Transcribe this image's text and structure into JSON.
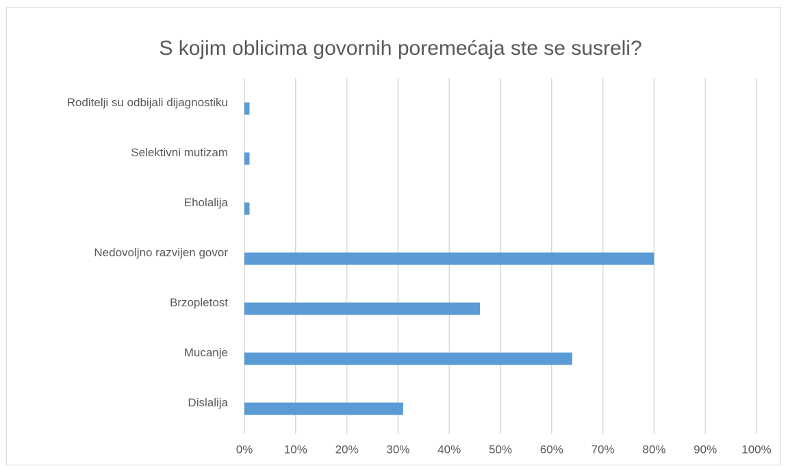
{
  "chart_data": {
    "type": "bar",
    "orientation": "horizontal",
    "title": "S kojim oblicima govornih poremećaja ste se susreli?",
    "categories": [
      "Roditelji su odbijali dijagnostiku",
      "Selektivni mutizam",
      "Eholalija",
      "Nedovoljno razvijen govor",
      "Brzopletost",
      "Mucanje",
      "Dislalija"
    ],
    "values": [
      1,
      1,
      1,
      80,
      46,
      64,
      31
    ],
    "color": "#5b9bd5",
    "xlim": [
      0,
      100
    ],
    "xticks": [
      {
        "value": 0,
        "label": "0%"
      },
      {
        "value": 10,
        "label": "10%"
      },
      {
        "value": 20,
        "label": "20%"
      },
      {
        "value": 30,
        "label": "30%"
      },
      {
        "value": 40,
        "label": "40%"
      },
      {
        "value": 50,
        "label": "50%"
      },
      {
        "value": 60,
        "label": "60%"
      },
      {
        "value": 70,
        "label": "70%"
      },
      {
        "value": 80,
        "label": "80%"
      },
      {
        "value": 90,
        "label": "90%"
      },
      {
        "value": 100,
        "label": "100%"
      }
    ],
    "grid": true
  }
}
